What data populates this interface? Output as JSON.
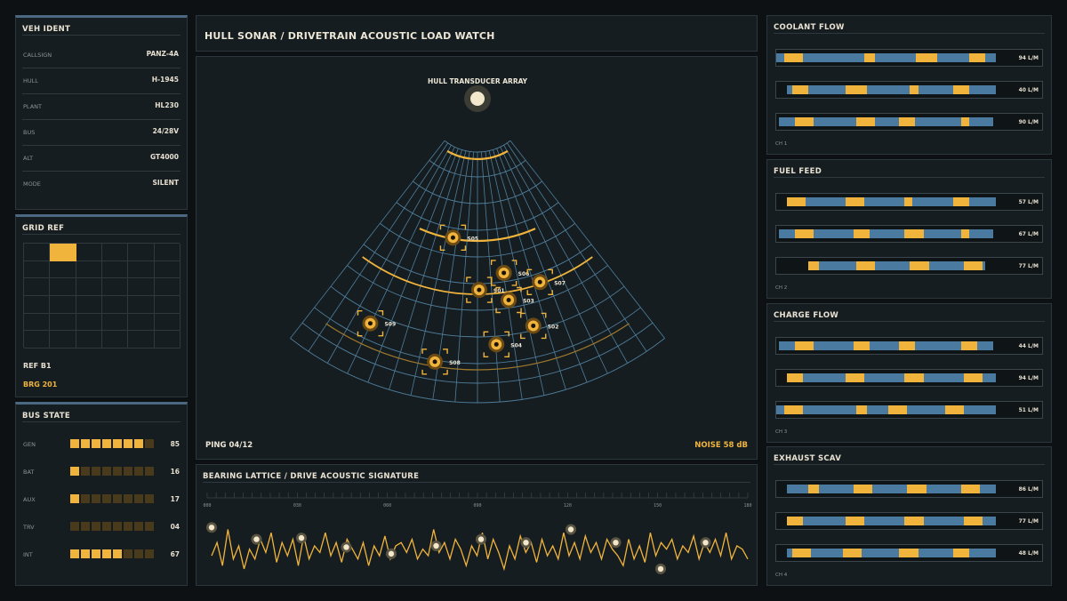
{
  "header": {
    "title": "HULL SONAR / DRIVETRAIN ACOUSTIC LOAD WATCH"
  },
  "veh_ident": {
    "title": "VEH IDENT",
    "rows": [
      {
        "key": "CALLSIGN",
        "value": "PANZ-4A"
      },
      {
        "key": "HULL",
        "value": "H-1945"
      },
      {
        "key": "PLANT",
        "value": "HL230"
      },
      {
        "key": "BUS",
        "value": "24/28V"
      },
      {
        "key": "ALT",
        "value": "GT4000"
      },
      {
        "key": "MODE",
        "value": "SILENT"
      }
    ]
  },
  "grid_ref": {
    "title": "GRID REF",
    "active_cell": {
      "row": 0,
      "col": 1
    },
    "ref": "REF B1",
    "brg": "BRG 201"
  },
  "bus_state": {
    "title": "BUS STATE",
    "rows": [
      {
        "key": "GEN",
        "value": "85",
        "level": 0.85
      },
      {
        "key": "BAT",
        "value": "16",
        "level": 0.16
      },
      {
        "key": "AUX",
        "value": "17",
        "level": 0.17
      },
      {
        "key": "TRV",
        "value": "04",
        "level": 0.04
      },
      {
        "key": "INT",
        "value": "67",
        "level": 0.67
      }
    ]
  },
  "sonar": {
    "array_label": "HULL TRANSDUCER ARRAY",
    "ping": "PING 04/12",
    "noise": "NOISE 58 dB",
    "contacts": [
      {
        "id": "S01",
        "angle": 0.5,
        "range": 0.55
      },
      {
        "id": "S02",
        "angle": 13.8,
        "range": 0.72
      },
      {
        "id": "S03",
        "angle": 8.8,
        "range": 0.6
      },
      {
        "id": "S04",
        "angle": 4.4,
        "range": 0.77
      },
      {
        "id": "S05",
        "angle": -10,
        "range": 0.35
      },
      {
        "id": "S06",
        "angle": 8.6,
        "range": 0.49
      },
      {
        "id": "S07",
        "angle": 18.8,
        "range": 0.56
      },
      {
        "id": "S08",
        "angle": -9.2,
        "range": 0.85
      },
      {
        "id": "S09",
        "angle": -25.5,
        "range": 0.78
      }
    ]
  },
  "signature": {
    "title": "BEARING LATTICE / DRIVE ACOUSTIC SIGNATURE",
    "ticks": [
      "000",
      "030",
      "060",
      "090",
      "120",
      "150",
      "180"
    ],
    "samples": [
      0.35,
      0.55,
      0.2,
      0.75,
      0.3,
      0.5,
      0.15,
      0.45,
      0.3,
      0.6,
      0.4,
      0.7,
      0.25,
      0.55,
      0.35,
      0.6,
      0.2,
      0.65,
      0.3,
      0.5,
      0.4,
      0.7,
      0.35,
      0.55,
      0.25,
      0.6,
      0.45,
      0.3,
      0.55,
      0.2,
      0.5,
      0.35,
      0.65,
      0.3,
      0.5,
      0.55,
      0.4,
      0.6,
      0.3,
      0.45,
      0.35,
      0.75,
      0.4,
      0.55,
      0.3,
      0.6,
      0.45,
      0.2,
      0.5,
      0.35,
      0.7,
      0.3,
      0.6,
      0.4,
      0.15,
      0.5,
      0.3,
      0.65,
      0.4,
      0.55,
      0.25,
      0.6,
      0.35,
      0.5,
      0.3,
      0.7,
      0.35,
      0.55,
      0.3,
      0.65,
      0.4,
      0.55,
      0.3,
      0.6,
      0.45,
      0.35,
      0.2,
      0.6,
      0.3,
      0.5,
      0.25,
      0.7,
      0.35,
      0.55,
      0.45,
      0.6,
      0.3,
      0.5,
      0.4,
      0.65,
      0.3,
      0.55,
      0.4,
      0.6,
      0.35,
      0.7,
      0.3,
      0.5,
      0.45,
      0.3
    ],
    "markers": [
      0.78,
      0.6,
      0.62,
      0.48,
      0.38,
      0.5,
      0.6,
      0.55,
      0.75,
      0.55,
      0.15,
      0.55
    ]
  },
  "flows": [
    {
      "title": "COOLANT FLOW",
      "ch": "CH 1",
      "rows": [
        {
          "value": "94 L/M",
          "bar": [
            0.0,
            0.82
          ],
          "amber": [
            [
              0.03,
              0.1
            ],
            [
              0.33,
              0.37
            ],
            [
              0.52,
              0.6
            ],
            [
              0.72,
              0.78
            ]
          ]
        },
        {
          "value": "40 L/M",
          "bar": [
            0.04,
            0.82
          ],
          "amber": [
            [
              0.06,
              0.12
            ],
            [
              0.26,
              0.34
            ],
            [
              0.5,
              0.53
            ],
            [
              0.66,
              0.72
            ]
          ]
        },
        {
          "value": "90 L/M",
          "bar": [
            0.01,
            0.81
          ],
          "amber": [
            [
              0.07,
              0.14
            ],
            [
              0.3,
              0.37
            ],
            [
              0.46,
              0.52
            ],
            [
              0.69,
              0.72
            ]
          ]
        }
      ]
    },
    {
      "title": "FUEL FEED",
      "ch": "CH 2",
      "rows": [
        {
          "value": "57 L/M",
          "bar": [
            0.04,
            0.82
          ],
          "amber": [
            [
              0.04,
              0.11
            ],
            [
              0.26,
              0.33
            ],
            [
              0.48,
              0.51
            ],
            [
              0.66,
              0.72
            ]
          ]
        },
        {
          "value": "67 L/M",
          "bar": [
            0.01,
            0.81
          ],
          "amber": [
            [
              0.07,
              0.14
            ],
            [
              0.29,
              0.35
            ],
            [
              0.48,
              0.55
            ],
            [
              0.69,
              0.72
            ]
          ]
        },
        {
          "value": "77 L/M",
          "bar": [
            0.12,
            0.78
          ],
          "amber": [
            [
              0.12,
              0.16
            ],
            [
              0.3,
              0.37
            ],
            [
              0.5,
              0.57
            ],
            [
              0.7,
              0.77
            ]
          ]
        }
      ]
    },
    {
      "title": "CHARGE FLOW",
      "ch": "CH 3",
      "rows": [
        {
          "value": "44 L/M",
          "bar": [
            0.01,
            0.81
          ],
          "amber": [
            [
              0.07,
              0.14
            ],
            [
              0.29,
              0.35
            ],
            [
              0.46,
              0.52
            ],
            [
              0.69,
              0.75
            ]
          ]
        },
        {
          "value": "94 L/M",
          "bar": [
            0.04,
            0.82
          ],
          "amber": [
            [
              0.04,
              0.1
            ],
            [
              0.26,
              0.33
            ],
            [
              0.48,
              0.55
            ],
            [
              0.7,
              0.77
            ]
          ]
        },
        {
          "value": "51 L/M",
          "bar": [
            0.0,
            0.82
          ],
          "amber": [
            [
              0.03,
              0.1
            ],
            [
              0.3,
              0.34
            ],
            [
              0.42,
              0.49
            ],
            [
              0.63,
              0.7
            ]
          ]
        }
      ]
    },
    {
      "title": "EXHAUST SCAV",
      "ch": "CH 4",
      "rows": [
        {
          "value": "86 L/M",
          "bar": [
            0.04,
            0.82
          ],
          "amber": [
            [
              0.12,
              0.16
            ],
            [
              0.29,
              0.36
            ],
            [
              0.49,
              0.56
            ],
            [
              0.69,
              0.76
            ]
          ]
        },
        {
          "value": "77 L/M",
          "bar": [
            0.04,
            0.82
          ],
          "amber": [
            [
              0.04,
              0.1
            ],
            [
              0.26,
              0.33
            ],
            [
              0.48,
              0.55
            ],
            [
              0.7,
              0.77
            ]
          ]
        },
        {
          "value": "48 L/M",
          "bar": [
            0.04,
            0.82
          ],
          "amber": [
            [
              0.06,
              0.13
            ],
            [
              0.25,
              0.32
            ],
            [
              0.46,
              0.53
            ],
            [
              0.66,
              0.72
            ]
          ]
        }
      ]
    }
  ],
  "colors": {
    "amber": "#f0b43c",
    "blue": "#4a7aa0",
    "panel": "#161d21"
  }
}
